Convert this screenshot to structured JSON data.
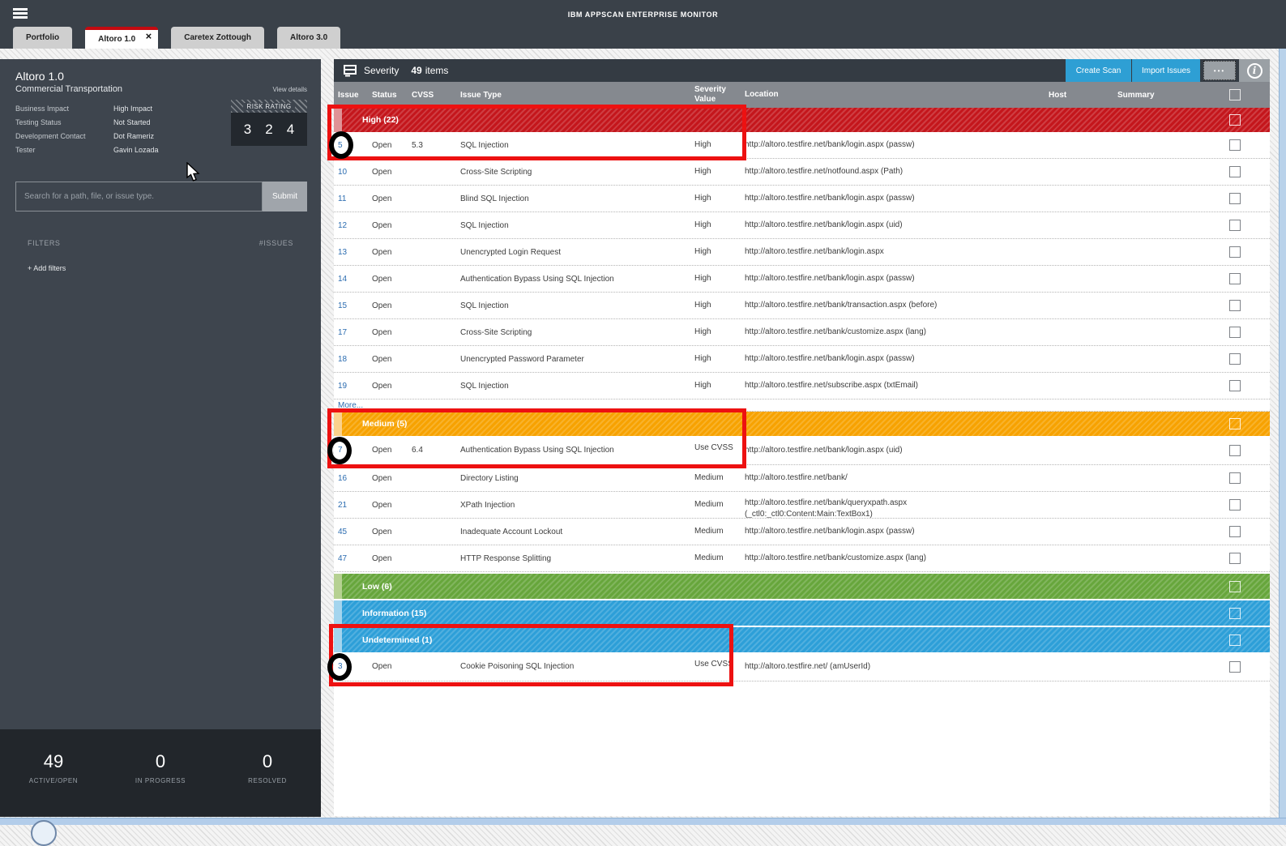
{
  "topbar": {
    "title": "IBM APPSCAN ENTERPRISE MONITOR"
  },
  "icons": {
    "close_tab": "×",
    "more_options": "•••",
    "info": "i"
  },
  "tabs": [
    {
      "label": "Portfolio",
      "active": false
    },
    {
      "label": "Altoro 1.0",
      "active": true
    },
    {
      "label": "Caretex Zottough",
      "active": false
    },
    {
      "label": "Altoro 3.0",
      "active": false
    }
  ],
  "sidebar": {
    "app_name": "Altoro 1.0",
    "app_subtitle": "Commercial Transportation",
    "view_details": "View details",
    "properties": [
      {
        "label": "Business Impact",
        "value": "High Impact"
      },
      {
        "label": "Testing Status",
        "value": "Not Started"
      },
      {
        "label": "Development Contact",
        "value": "Dot Rameriz"
      },
      {
        "label": "Tester",
        "value": "Gavin Lozada"
      }
    ],
    "risk_rating": {
      "label": "RISK RATING",
      "values": [
        "3",
        "2",
        "4"
      ]
    },
    "search": {
      "placeholder": "Search for a path, file, or issue type.",
      "submit_label": "Submit"
    },
    "filters_label": "FILTERS",
    "issues_label": "#ISSUES",
    "add_filters_label": "+ Add filters",
    "stats": [
      {
        "value": "49",
        "label": "ACTIVE/OPEN"
      },
      {
        "value": "0",
        "label": "IN PROGRESS"
      },
      {
        "value": "0",
        "label": "RESOLVED"
      }
    ]
  },
  "main": {
    "header": {
      "group_by": "Severity",
      "count": "49",
      "items_label": "items",
      "create_scan_label": "Create Scan",
      "import_issues_label": "Import Issues"
    },
    "columns": [
      "Issue",
      "Status",
      "CVSS",
      "Issue Type",
      "Severity Value",
      "Location",
      "Host",
      "Summary"
    ],
    "groups": [
      {
        "key": "high",
        "label": "High (22)",
        "color": "#c4161c",
        "light_color": "#e09296",
        "gap": false,
        "rows": [
          {
            "id": "5",
            "status": "Open",
            "cvss": "5.3",
            "type": "SQL Injection",
            "severity": "High",
            "location": "http://altoro.testfire.net/bank/login.aspx (passw)",
            "tall": false
          },
          {
            "id": "10",
            "status": "Open",
            "cvss": "",
            "type": "Cross-Site Scripting",
            "severity": "High",
            "location": "http://altoro.testfire.net/notfound.aspx (Path)",
            "tall": false
          },
          {
            "id": "11",
            "status": "Open",
            "cvss": "",
            "type": "Blind SQL Injection",
            "severity": "High",
            "location": "http://altoro.testfire.net/bank/login.aspx (passw)",
            "tall": false
          },
          {
            "id": "12",
            "status": "Open",
            "cvss": "",
            "type": "SQL Injection",
            "severity": "High",
            "location": "http://altoro.testfire.net/bank/login.aspx (uid)",
            "tall": false
          },
          {
            "id": "13",
            "status": "Open",
            "cvss": "",
            "type": "Unencrypted Login Request",
            "severity": "High",
            "location": "http://altoro.testfire.net/bank/login.aspx",
            "tall": false
          },
          {
            "id": "14",
            "status": "Open",
            "cvss": "",
            "type": "Authentication Bypass Using SQL Injection",
            "severity": "High",
            "location": "http://altoro.testfire.net/bank/login.aspx (passw)",
            "tall": false
          },
          {
            "id": "15",
            "status": "Open",
            "cvss": "",
            "type": "SQL Injection",
            "severity": "High",
            "location": "http://altoro.testfire.net/bank/transaction.aspx (before)",
            "tall": false
          },
          {
            "id": "17",
            "status": "Open",
            "cvss": "",
            "type": "Cross-Site Scripting",
            "severity": "High",
            "location": "http://altoro.testfire.net/bank/customize.aspx (lang)",
            "tall": false
          },
          {
            "id": "18",
            "status": "Open",
            "cvss": "",
            "type": "Unencrypted Password Parameter",
            "severity": "High",
            "location": "http://altoro.testfire.net/bank/login.aspx (passw)",
            "tall": false
          },
          {
            "id": "19",
            "status": "Open",
            "cvss": "",
            "type": "SQL Injection",
            "severity": "High",
            "location": "http://altoro.testfire.net/subscribe.aspx (txtEmail)",
            "tall": false
          }
        ],
        "more_label": "More..."
      },
      {
        "key": "medium",
        "label": "Medium (5)",
        "color": "#f7a200",
        "light_color": "#fbd28c",
        "gap": false,
        "rows": [
          {
            "id": "7",
            "status": "Open",
            "cvss": "6.4",
            "type": "Authentication Bypass Using SQL Injection",
            "severity": "Use CVSS",
            "location": "http://altoro.testfire.net/bank/login.aspx (uid)",
            "tall": true
          },
          {
            "id": "16",
            "status": "Open",
            "cvss": "",
            "type": "Directory Listing",
            "severity": "Medium",
            "location": "http://altoro.testfire.net/bank/",
            "tall": false
          },
          {
            "id": "21",
            "status": "Open",
            "cvss": "",
            "type": "XPath Injection",
            "severity": "Medium",
            "location": "http://altoro.testfire.net/bank/queryxpath.aspx",
            "location2": "(_ctl0:_ctl0:Content:Main:TextBox1)",
            "tall": false
          },
          {
            "id": "45",
            "status": "Open",
            "cvss": "",
            "type": "Inadequate Account Lockout",
            "severity": "Medium",
            "location": "http://altoro.testfire.net/bank/login.aspx (passw)",
            "tall": false
          },
          {
            "id": "47",
            "status": "Open",
            "cvss": "",
            "type": "HTTP Response Splitting",
            "severity": "Medium",
            "location": "http://altoro.testfire.net/bank/customize.aspx (lang)",
            "tall": false
          }
        ]
      },
      {
        "key": "low",
        "label": "Low (6)",
        "color": "#67a63c",
        "light_color": "#b6d192",
        "gap": true,
        "rows": []
      },
      {
        "key": "information",
        "label": "Information (15)",
        "color": "#2d9fd8",
        "light_color": "#a4d5ee",
        "gap": true,
        "rows": []
      },
      {
        "key": "undetermined",
        "label": "Undetermined (1)",
        "color": "#2d9fd8",
        "light_color": "#a4d5ee",
        "gap": true,
        "rows": [
          {
            "id": "3",
            "status": "Open",
            "cvss": "",
            "type": "Cookie Poisoning SQL Injection",
            "severity": "Use CVSS",
            "location": "http://altoro.testfire.net/ (amUserId)",
            "tall": true
          }
        ]
      }
    ]
  },
  "annotations": {
    "box_color": "#ed1111",
    "circled_issue_ids": [
      "5",
      "7",
      "3"
    ]
  }
}
